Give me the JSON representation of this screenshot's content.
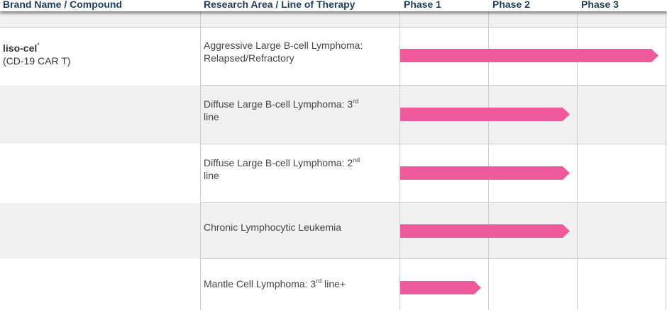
{
  "header": {
    "brand_col": "Brand Name / Compound",
    "area_col": "Research Area / Line of Therapy",
    "phase1": "Phase 1",
    "phase2": "Phase 2",
    "phase3": "Phase 3"
  },
  "compound": {
    "name": "liso-cel",
    "marker": "*",
    "subtitle": "(CD-19 CAR T)"
  },
  "rows": [
    {
      "text_a": "Aggressive Large B-cell Lymphoma:",
      "text_b": "Relapsed/Refractory",
      "sup": "",
      "phase_progress": 3
    },
    {
      "text_a": "Diffuse Large B-cell Lymphoma: 3",
      "sup": "rd",
      "text_b": "line",
      "phase_progress": 2
    },
    {
      "text_a": "Diffuse Large B-cell Lymphoma: 2",
      "sup": "nd",
      "text_b": "line",
      "phase_progress": 2
    },
    {
      "text_a": "Chronic Lymphocytic Leukemia",
      "sup": "",
      "text_b": "",
      "phase_progress": 2
    },
    {
      "text_a": "Mantle Cell Lymphoma: 3",
      "sup": "rd",
      "text_b": " line+",
      "phase_progress": 1
    }
  ],
  "colors": {
    "bar": "#ef5a9c",
    "header_text": "#1f3c5a",
    "alt_row": "#f1f1f1"
  }
}
